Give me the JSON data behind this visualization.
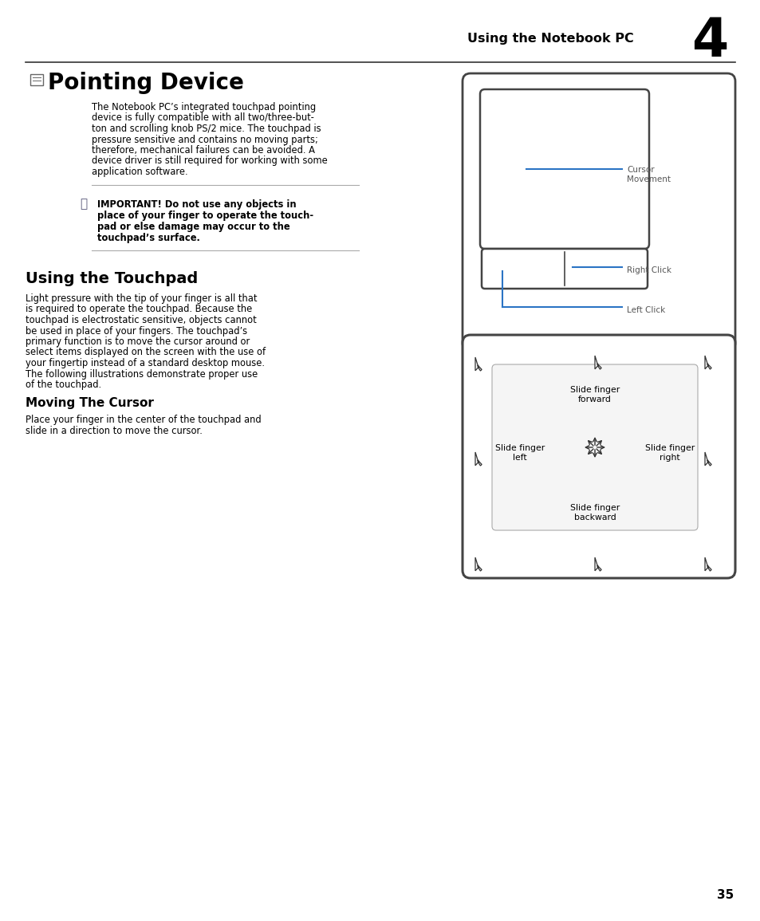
{
  "page_title": "Using the Notebook PC",
  "chapter_num": "4",
  "section1_title": "Pointing Device",
  "section1_body_lines": [
    "The Notebook PC’s integrated touchpad pointing",
    "device is fully compatible with all two/three-but-",
    "ton and scrolling knob PS/2 mice. The touchpad is",
    "pressure sensitive and contains no moving parts;",
    "therefore, mechanical failures can be avoided. A",
    "device driver is still required for working with some",
    "application software."
  ],
  "warning_lines": [
    "IMPORTANT! Do not use any objects in",
    "place of your finger to operate the touch-",
    "pad or else damage may occur to the",
    "touchpad’s surface."
  ],
  "section2_title": "Using the Touchpad",
  "section2_body_lines": [
    "Light pressure with the tip of your finger is all that",
    "is required to operate the touchpad. Because the",
    "touchpad is electrostatic sensitive, objects cannot",
    "be used in place of your fingers. The touchpad’s",
    "primary function is to move the cursor around or",
    "select items displayed on the screen with the use of",
    "your fingertip instead of a standard desktop mouse.",
    "The following illustrations demonstrate proper use",
    "of the touchpad."
  ],
  "section3_title": "Moving The Cursor",
  "section3_body_lines": [
    "Place your finger in the center of the touchpad and",
    "slide in a direction to move the cursor."
  ],
  "page_num": "35",
  "bg_color": "#ffffff",
  "text_color": "#000000",
  "gray_text": "#555555",
  "blue_color": "#2b74c4",
  "header_line_color": "#000000",
  "diagram1_label1": "Cursor",
  "diagram1_label2": "Movement",
  "diagram1_label3": "Right Click",
  "diagram1_label4": "Left Click",
  "diagram2_label_forward": "Slide finger\nforward",
  "diagram2_label_backward": "Slide finger\nbackward",
  "diagram2_label_left": "Slide finger\nleft",
  "diagram2_label_right": "Slide finger\nright"
}
